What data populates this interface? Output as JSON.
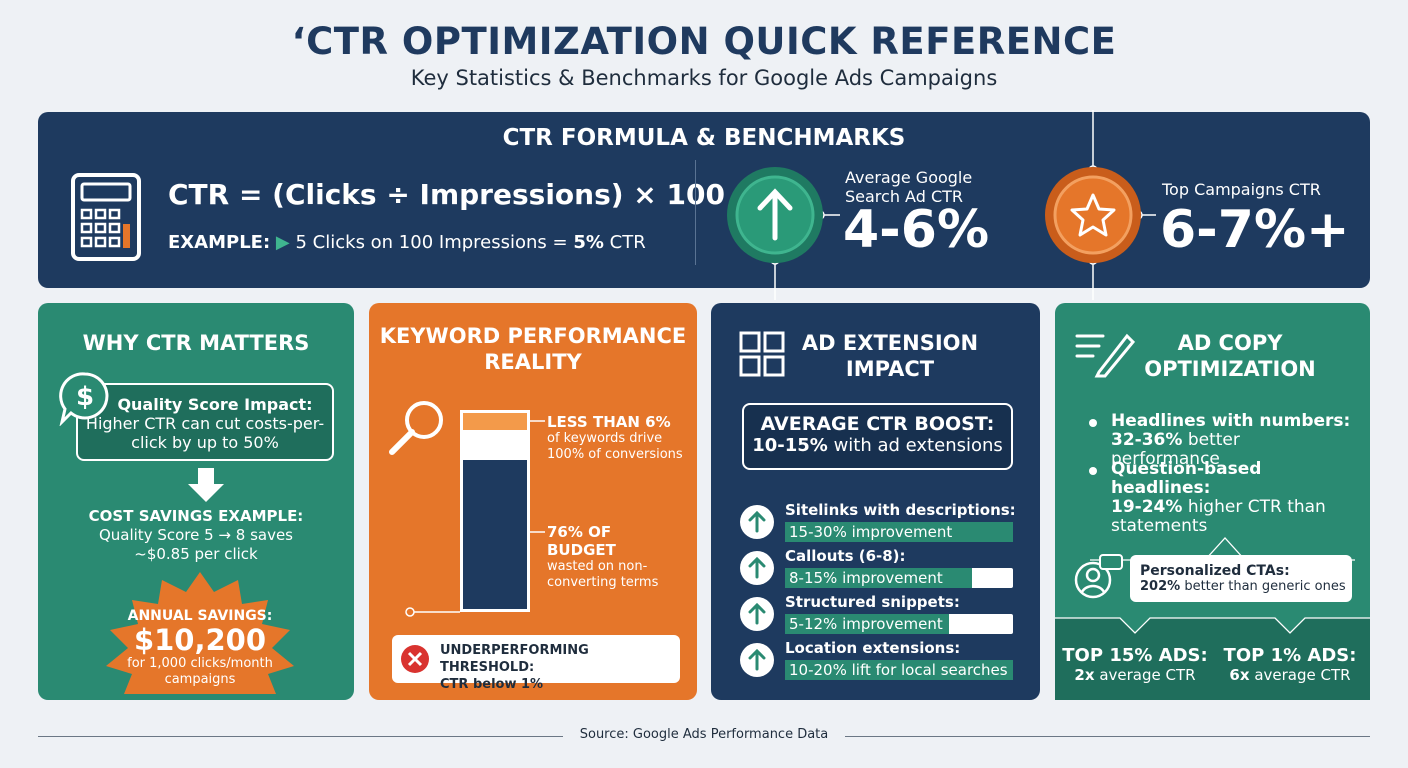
{
  "header": {
    "title": "‘CTR OPTIMIZATION QUICK REFERENCE",
    "subtitle": "Key Statistics & Benchmarks for Google Ads Campaigns"
  },
  "formula": {
    "title": "CTR FORMULA & BENCHMARKS",
    "formula": "CTR = (Clicks ÷ Impressions) × 100",
    "example_label": "EXAMPLE:",
    "example_text": "5 Clicks on 100 Impressions =",
    "example_result": "5%",
    "example_unit": "CTR"
  },
  "benchmarks": [
    {
      "label": "Average Google Search Ad CTR",
      "value": "4-6%"
    },
    {
      "label": "Top Campaigns CTR",
      "value": "6-7%+"
    }
  ],
  "why": {
    "title": "WHY CTR MATTERS",
    "quality_title": "Quality Score Impact:",
    "quality_text": "Higher CTR can cut costs-per-click by up to 50%",
    "savings_title": "COST SAVINGS EXAMPLE:",
    "savings_text": "Quality Score 5 → 8 saves ~$0.85 per click",
    "annual_label": "ANNUAL SAVINGS:",
    "annual_value": "$10,200",
    "annual_note": "for 1,000 clicks/month campaigns"
  },
  "keyword": {
    "title": "KEYWORD PERFORMANCE REALITY",
    "stat1_title": "LESS THAN 6%",
    "stat1_text": "of keywords drive 100% of conversions",
    "stat2_title": "76% OF BUDGET",
    "stat2_text": "wasted on non-converting terms",
    "threshold_title": "UNDERPERFORMING THRESHOLD:",
    "threshold_text": "CTR below 1%"
  },
  "extensions": {
    "title": "AD EXTENSION IMPACT",
    "boost_title": "AVERAGE CTR BOOST:",
    "boost_value": "10-15%",
    "boost_text": "with ad extensions",
    "items": [
      {
        "name": "Sitelinks with descriptions:",
        "text": "15-30% improvement"
      },
      {
        "name": "Callouts (6-8):",
        "text": "8-15% improvement"
      },
      {
        "name": "Structured snippets:",
        "text": "5-12% improvement"
      },
      {
        "name": "Location extensions:",
        "text": "10-20% lift for local searches"
      }
    ]
  },
  "copy": {
    "title": "AD COPY OPTIMIZATION",
    "bullets": [
      {
        "label": "Headlines with numbers:",
        "value": "32-36%",
        "text": "better performance"
      },
      {
        "label": "Question-based headlines:",
        "value": "19-24%",
        "text": "higher CTR than statements"
      }
    ],
    "cta_title": "Personalized CTAs:",
    "cta_value": "202%",
    "cta_text": "better than generic ones",
    "top": [
      {
        "label": "TOP 15% ADS:",
        "value": "2x",
        "text": "average CTR"
      },
      {
        "label": "TOP 1% ADS:",
        "value": "6x",
        "text": "average CTR"
      }
    ]
  },
  "footer": {
    "source": "Source: Google Ads Performance Data"
  }
}
